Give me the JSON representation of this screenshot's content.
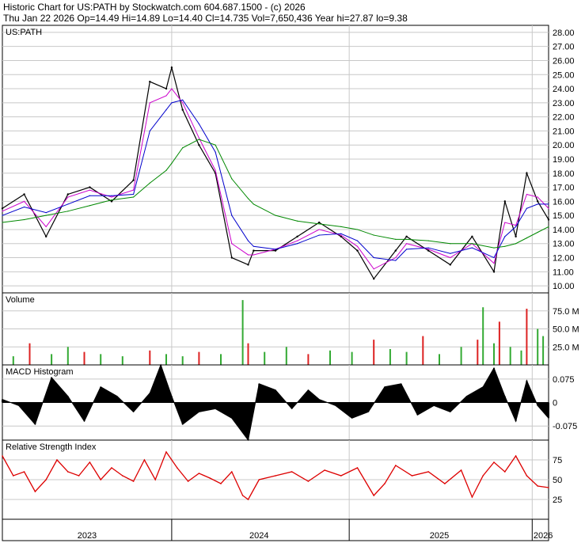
{
  "header": {
    "line1": "Historic Chart for US:PATH by Stockwatch.com 604.687.1500 - (c) 2026",
    "line2": "Thu Jan 22 2026   Op=14.49   Hi=14.89   Lo=14.40   Cl=14.735   Vol=7,650,436   Year hi=27.87   lo=9.38"
  },
  "colors": {
    "price": "#000000",
    "ma_short": "#cc00cc",
    "ma_mid": "#0000cc",
    "ma_long": "#008800",
    "volume_up": "#33aa33",
    "volume_down": "#dd2222",
    "macd": "#000000",
    "rsi": "#dd0000",
    "grid": "#c8c8c8"
  },
  "chart_data": [
    {
      "type": "line",
      "panel": "price",
      "title": "US:PATH",
      "ylim": [
        9.5,
        28.5
      ],
      "yticks": [
        "28.00",
        "27.00",
        "26.00",
        "25.00",
        "24.00",
        "23.00",
        "22.00",
        "21.00",
        "20.00",
        "19.00",
        "18.00",
        "17.00",
        "16.00",
        "15.00",
        "14.00",
        "13.00",
        "12.00",
        "11.00",
        "10.00"
      ],
      "x_labels": [
        "2023",
        "2024",
        "2025",
        "2026"
      ],
      "x": [
        0,
        0.04,
        0.08,
        0.12,
        0.16,
        0.2,
        0.24,
        0.27,
        0.3,
        0.31,
        0.33,
        0.36,
        0.39,
        0.42,
        0.45,
        0.46,
        0.5,
        0.54,
        0.58,
        0.62,
        0.65,
        0.68,
        0.72,
        0.74,
        0.78,
        0.82,
        0.86,
        0.9,
        0.92,
        0.94,
        0.96,
        0.98,
        1.0
      ],
      "series": [
        {
          "name": "",
          "values": [
            15.5,
            16.5,
            13.5,
            16.5,
            17.0,
            16.0,
            17.5,
            24.5,
            24.0,
            25.5,
            22.5,
            20.0,
            18.0,
            12.0,
            11.5,
            12.5,
            12.5,
            13.5,
            14.5,
            13.5,
            12.5,
            10.5,
            12.5,
            13.5,
            12.5,
            11.5,
            13.5,
            11.0,
            16.0,
            13.5,
            18.0,
            16.0,
            14.7
          ]
        },
        {
          "name": "",
          "values": [
            15.3,
            16.0,
            14.2,
            16.3,
            16.8,
            16.3,
            16.8,
            23.0,
            23.5,
            24.0,
            23.0,
            20.5,
            18.2,
            13.0,
            12.2,
            12.2,
            12.6,
            13.2,
            14.0,
            13.6,
            12.8,
            11.2,
            12.0,
            13.0,
            12.6,
            12.0,
            13.0,
            11.6,
            14.5,
            14.3,
            16.5,
            16.3,
            15.5
          ]
        },
        {
          "name": "",
          "values": [
            15.0,
            15.6,
            15.2,
            15.8,
            16.4,
            16.4,
            16.5,
            21.0,
            22.5,
            23.0,
            23.2,
            21.5,
            19.5,
            15.0,
            13.2,
            12.8,
            12.6,
            13.0,
            13.6,
            13.7,
            13.2,
            12.0,
            11.8,
            12.6,
            12.7,
            12.3,
            12.7,
            12.0,
            13.5,
            14.2,
            15.5,
            15.8,
            15.8
          ]
        },
        {
          "name": "",
          "values": [
            14.5,
            14.7,
            15.0,
            15.3,
            15.7,
            16.1,
            16.3,
            17.3,
            18.2,
            18.7,
            19.8,
            20.4,
            20.0,
            17.6,
            16.2,
            15.8,
            15.0,
            14.6,
            14.4,
            14.2,
            14.0,
            13.6,
            13.3,
            13.3,
            13.2,
            13.0,
            13.0,
            12.7,
            12.8,
            13.0,
            13.4,
            13.8,
            14.2
          ]
        }
      ]
    },
    {
      "type": "bar",
      "panel": "volume",
      "title": "Volume",
      "ylim": [
        0,
        100
      ],
      "yticks": [
        "75.0 M",
        "50.0 M",
        "25.0 M"
      ],
      "x": [
        0.02,
        0.05,
        0.09,
        0.12,
        0.15,
        0.18,
        0.22,
        0.27,
        0.3,
        0.33,
        0.36,
        0.4,
        0.44,
        0.45,
        0.48,
        0.52,
        0.56,
        0.6,
        0.64,
        0.68,
        0.71,
        0.74,
        0.77,
        0.8,
        0.84,
        0.87,
        0.88,
        0.9,
        0.91,
        0.93,
        0.95,
        0.96,
        0.98,
        0.99
      ],
      "values": [
        12,
        30,
        15,
        25,
        18,
        15,
        12,
        20,
        15,
        12,
        18,
        15,
        90,
        30,
        18,
        25,
        15,
        20,
        18,
        35,
        22,
        18,
        40,
        15,
        25,
        35,
        80,
        30,
        60,
        25,
        20,
        78,
        50,
        40
      ]
    },
    {
      "type": "bar",
      "panel": "macd",
      "title": "MACD Histogram",
      "ylim": [
        -0.12,
        0.12
      ],
      "yticks": [
        "0.075",
        "0",
        "-0.075"
      ],
      "x": [
        0,
        0.03,
        0.06,
        0.09,
        0.12,
        0.15,
        0.18,
        0.21,
        0.24,
        0.27,
        0.29,
        0.31,
        0.33,
        0.36,
        0.39,
        0.42,
        0.45,
        0.47,
        0.5,
        0.53,
        0.56,
        0.58,
        0.61,
        0.64,
        0.67,
        0.7,
        0.73,
        0.76,
        0.79,
        0.82,
        0.85,
        0.88,
        0.9,
        0.92,
        0.94,
        0.96,
        0.98,
        1.0
      ],
      "values": [
        0.01,
        -0.01,
        -0.07,
        0.08,
        0.02,
        -0.06,
        0.05,
        0.02,
        -0.03,
        0.03,
        0.12,
        0.02,
        -0.07,
        -0.03,
        -0.02,
        -0.05,
        -0.12,
        0.06,
        0.04,
        -0.02,
        0.04,
        0.01,
        -0.01,
        -0.05,
        -0.03,
        0.05,
        0.06,
        -0.04,
        -0.01,
        -0.03,
        0.02,
        0.05,
        0.11,
        0.02,
        -0.06,
        0.07,
        -0.01,
        -0.05
      ]
    },
    {
      "type": "line",
      "panel": "rsi",
      "title": "Relative Strength Index",
      "ylim": [
        0,
        100
      ],
      "yticks": [
        "75",
        "50",
        "25"
      ],
      "x": [
        0,
        0.02,
        0.04,
        0.06,
        0.08,
        0.1,
        0.12,
        0.14,
        0.16,
        0.18,
        0.2,
        0.22,
        0.24,
        0.26,
        0.28,
        0.3,
        0.32,
        0.34,
        0.36,
        0.38,
        0.4,
        0.42,
        0.44,
        0.45,
        0.47,
        0.5,
        0.53,
        0.56,
        0.59,
        0.62,
        0.65,
        0.68,
        0.7,
        0.72,
        0.75,
        0.78,
        0.81,
        0.84,
        0.86,
        0.88,
        0.9,
        0.92,
        0.94,
        0.96,
        0.98,
        1.0
      ],
      "values": [
        80,
        55,
        60,
        35,
        50,
        75,
        60,
        55,
        72,
        50,
        65,
        55,
        48,
        75,
        50,
        85,
        65,
        48,
        58,
        52,
        45,
        60,
        30,
        25,
        50,
        55,
        60,
        48,
        62,
        55,
        65,
        30,
        45,
        68,
        55,
        60,
        45,
        62,
        28,
        55,
        72,
        60,
        80,
        55,
        42,
        40
      ]
    }
  ]
}
